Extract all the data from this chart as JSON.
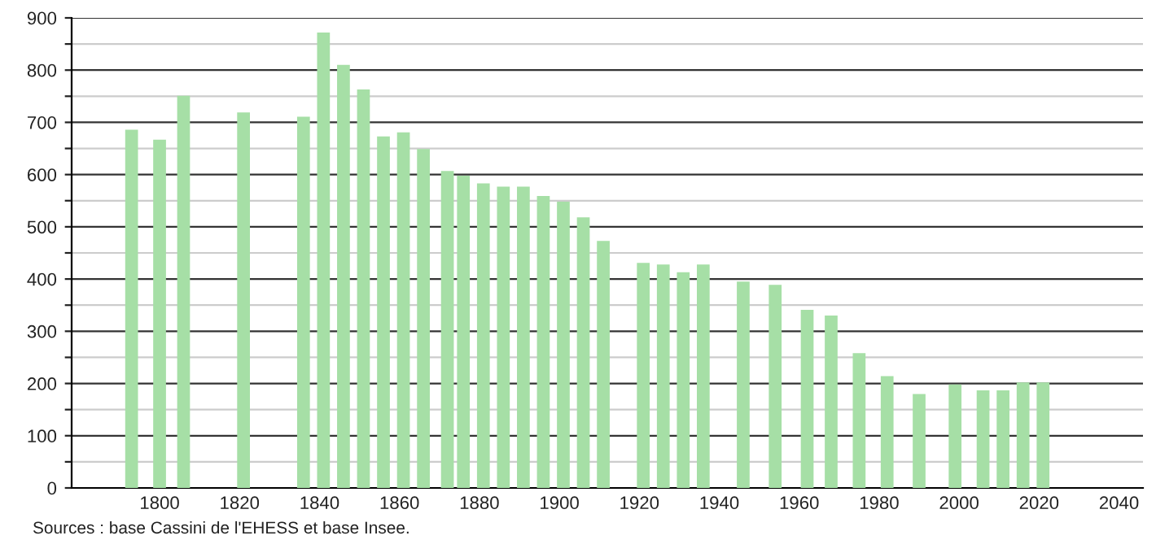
{
  "chart_data": {
    "type": "bar",
    "color": "#a6dfa6",
    "x": [
      1793,
      1800,
      1806,
      1821,
      1836,
      1841,
      1846,
      1851,
      1856,
      1861,
      1866,
      1872,
      1876,
      1881,
      1886,
      1891,
      1896,
      1901,
      1906,
      1911,
      1921,
      1926,
      1931,
      1936,
      1946,
      1954,
      1962,
      1968,
      1975,
      1982,
      1990,
      1999,
      2006,
      2011,
      2016,
      2021
    ],
    "values": [
      686,
      667,
      751,
      719,
      711,
      872,
      810,
      763,
      673,
      681,
      649,
      607,
      598,
      583,
      577,
      577,
      559,
      548,
      518,
      473,
      431,
      428,
      413,
      428,
      395,
      389,
      341,
      330,
      258,
      214,
      180,
      198,
      187,
      187,
      202,
      202
    ],
    "xlim": [
      1778,
      2046
    ],
    "xticks": [
      1800,
      1820,
      1840,
      1860,
      1880,
      1900,
      1920,
      1940,
      1960,
      1980,
      2000,
      2020,
      2040
    ],
    "ylim": [
      0,
      900
    ],
    "yticks": [
      0,
      {
        "value": 50,
        "label": null
      },
      100,
      {
        "value": 150,
        "label": null
      },
      200,
      {
        "value": 250,
        "label": null
      },
      300,
      {
        "value": 350,
        "label": null
      },
      400,
      {
        "value": 450,
        "label": null
      },
      500,
      {
        "value": 550,
        "label": null
      },
      600,
      {
        "value": 650,
        "label": null
      },
      700,
      {
        "value": 750,
        "label": null
      },
      800,
      {
        "value": 850,
        "label": null
      },
      900
    ],
    "grid": "y",
    "annotations": [
      "Sources : base Cassini de l'EHESS et base Insee."
    ]
  }
}
